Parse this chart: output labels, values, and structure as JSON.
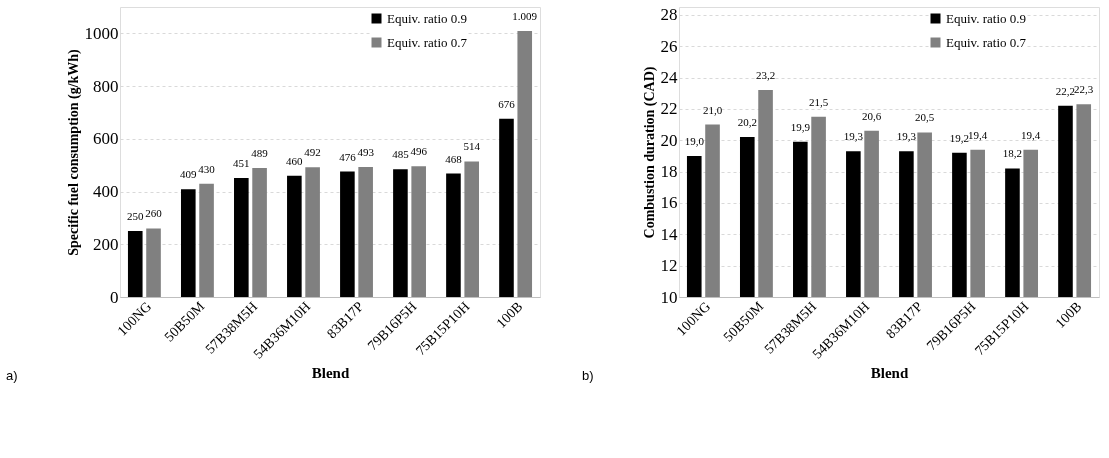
{
  "chart_data": [
    {
      "type": "bar",
      "xlabel": "Blend",
      "ylabel": "Specific fuel consumption  (g/kWh)",
      "categories": [
        "100NG",
        "50B50M",
        "57B38M5H",
        "54B36M10H",
        "83B17P",
        "79B16P5H",
        "75B15P10H",
        "100B"
      ],
      "series": [
        {
          "name": "Equiv. ratio 0.9",
          "color": "#000000",
          "values": [
            250,
            409,
            451,
            460,
            476,
            485,
            468,
            676
          ],
          "value_labels": [
            "250",
            "409",
            "451",
            "460",
            "476",
            "485",
            "468",
            "676"
          ]
        },
        {
          "name": "Equiv. ratio 0.7",
          "color": "#808080",
          "values": [
            260,
            430,
            489,
            492,
            493,
            496,
            514,
            1009
          ],
          "value_labels": [
            "260",
            "430",
            "489",
            "492",
            "493",
            "496",
            "514",
            "1.009"
          ]
        }
      ],
      "ylim": [
        0,
        1100
      ],
      "yticks": [
        0,
        200,
        400,
        600,
        800,
        1000
      ],
      "grid": "y",
      "legend": "top right",
      "annotations": [
        "a)"
      ]
    },
    {
      "type": "bar",
      "xlabel": "Blend",
      "ylabel": "Combustion duration (CAD)",
      "categories": [
        "100NG",
        "50B50M",
        "57B38M5H",
        "54B36M10H",
        "83B17P",
        "79B16P5H",
        "75B15P10H",
        "100B"
      ],
      "series": [
        {
          "name": "Equiv. ratio 0.9",
          "color": "#000000",
          "values": [
            19.0,
            20.2,
            19.9,
            19.3,
            19.3,
            19.2,
            18.2,
            22.2
          ],
          "value_labels": [
            "19,0",
            "20,2",
            "19,9",
            "19,3",
            "19,3",
            "19,2",
            "18,2",
            "22,2"
          ]
        },
        {
          "name": "Equiv. ratio 0.7",
          "color": "#808080",
          "values": [
            21.0,
            23.2,
            21.5,
            20.6,
            20.5,
            19.4,
            19.4,
            22.3
          ],
          "value_labels": [
            "21,0",
            "23,2",
            "21,5",
            "20,6",
            "20,5",
            "19,4",
            "19,4",
            "22,3"
          ]
        }
      ],
      "ylim": [
        10,
        28.5
      ],
      "yticks": [
        10,
        12,
        14,
        16,
        18,
        20,
        22,
        24,
        26,
        28
      ],
      "grid": "y",
      "legend": "top right",
      "annotations": [
        "b)"
      ]
    }
  ]
}
